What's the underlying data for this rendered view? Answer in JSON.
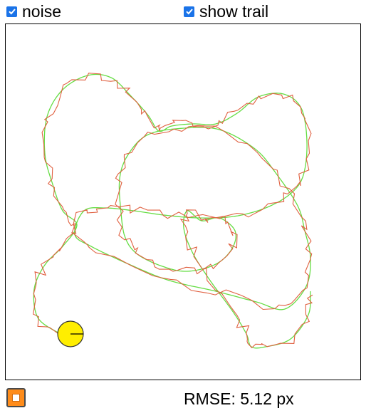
{
  "options": {
    "noise": {
      "label": "noise",
      "checked": true
    },
    "show_trail": {
      "label": "show trail",
      "checked": true
    }
  },
  "status": {
    "rmse_label": "RMSE:",
    "rmse_value": "5.12",
    "rmse_unit": "px"
  },
  "colors": {
    "checkbox": "#1a73e8",
    "true_path": "#66dd44",
    "noisy_trail": "#e06040",
    "robot_fill": "#ffee00",
    "robot_stroke": "#333333",
    "stop_button": "#ff8c1a"
  },
  "icons": {
    "stop_button": "stop-square-icon",
    "checkbox": "checkmark-icon"
  }
}
